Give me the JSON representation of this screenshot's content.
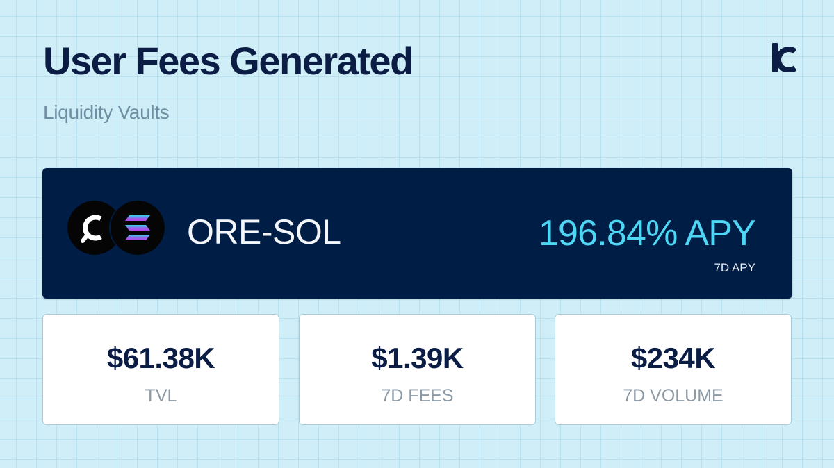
{
  "header": {
    "title": "User Fees Generated",
    "subtitle": "Liquidity Vaults",
    "logo_icon": "kamino-logo-icon"
  },
  "vault": {
    "pair": "ORE-SOL",
    "apy_value": "196.84% APY",
    "apy_label": "7D APY",
    "token_icons": [
      "ore-token-icon",
      "sol-token-icon"
    ]
  },
  "stats": [
    {
      "value": "$61.38K",
      "label": "TVL"
    },
    {
      "value": "$1.39K",
      "label": "7D FEES"
    },
    {
      "value": "$234K",
      "label": "7D VOLUME"
    }
  ],
  "colors": {
    "background": "#cfeef8",
    "title": "#0b1d44",
    "subtitle": "#6e8fa3",
    "hero_card": "#001d45",
    "apy_accent": "#4ed6f5",
    "stat_label": "#8c9aa6"
  }
}
